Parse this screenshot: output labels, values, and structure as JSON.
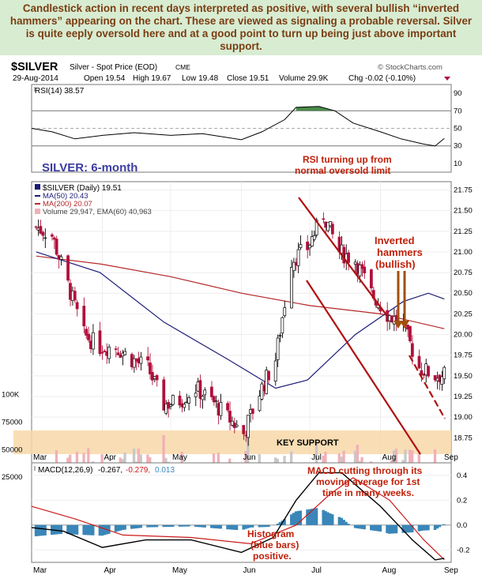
{
  "commentary": "Candlestick action in recent days interpreted as positive, with several bullish “inverted hammers” appearing on the chart. These are viewed as signaling a probable reversal. Silver is quite eeply oversold here and at a good point to turn up being just above important support.",
  "header": {
    "symbol": "$SILVER",
    "name": "Silver - Spot Price (EOD)",
    "exchange": "CME",
    "source": "© StockCharts.com",
    "date": "29-Aug-2014",
    "open": "Open 19.54",
    "high": "High 19.67",
    "low": "Low 19.48",
    "close": "Close 19.51",
    "volume": "Volume 29.9K",
    "chg": "Chg -0.02 (-0.10%)"
  },
  "rsi_panel": {
    "legend": "RSI(14) 38.57",
    "ticks": [
      "90",
      "70",
      "50",
      "30",
      "10"
    ],
    "annotation_line1": "RSI turning up from",
    "annotation_line2": "normal oversold limit"
  },
  "price_panel": {
    "title": "SILVER: 6-month",
    "legend_silver": "$SILVER (Daily) 19.51",
    "legend_ma50": "MA(50) 20.43",
    "legend_ma200": "MA(200) 20.07",
    "legend_volume": "Volume 29,947, EMA(60) 40,963",
    "price_ticks": [
      "21.75",
      "21.50",
      "21.25",
      "21.00",
      "20.75",
      "20.50",
      "20.25",
      "20.00",
      "19.75",
      "19.50",
      "19.25",
      "19.00",
      "18.75"
    ],
    "volume_ticks": [
      "100K",
      "75000",
      "50000",
      "25000"
    ],
    "key_support": "KEY SUPPORT",
    "hammer_line1": "Inverted",
    "hammer_line2": "hammers",
    "hammer_line3": "(bullish)"
  },
  "macd_panel": {
    "legend_prefix": "MACD(12,26,9)",
    "legend_macd": "-0.267,",
    "legend_signal": "-0.279,",
    "legend_hist": "0.013",
    "ticks": [
      "0.4",
      "0.2",
      "0.0",
      "-0.2"
    ],
    "annotation_line1": "MACD cutting through its",
    "annotation_line2": "moving average for 1st",
    "annotation_line3": "time in many weeks.",
    "histogram_line1": "Histogram",
    "histogram_line2": "(blue bars)",
    "histogram_line3": "positive."
  },
  "months": [
    "Mar",
    "Apr",
    "May",
    "Jun",
    "Jul",
    "Aug",
    "Sep"
  ],
  "colors": {
    "commentary_bg": "#d8ecd2",
    "commentary_text": "#7a3d12",
    "annotation": "#c0200a",
    "title_blue": "#3c3ca0",
    "up_candle": "#000000",
    "down_candle": "#b0103c",
    "ma50": "#1c1c78",
    "ma200": "#b42828",
    "volume_bar": "#f0b0b8",
    "support_zone": "#f8d8a8",
    "rsi_fill": "#4a8a4a",
    "macd_hist": "#3a86b8"
  },
  "chart_data": {
    "type": "candlestick",
    "x_range": [
      "2014-03-01",
      "2014-09-01"
    ],
    "price": {
      "ylim": [
        18.6,
        21.85
      ],
      "close_path": [
        [
          "2014-03-03",
          21.3
        ],
        [
          "2014-03-10",
          21.2
        ],
        [
          "2014-03-17",
          20.6
        ],
        [
          "2014-03-24",
          20.0
        ],
        [
          "2014-03-31",
          19.85
        ],
        [
          "2014-04-07",
          19.85
        ],
        [
          "2014-04-14",
          19.7
        ],
        [
          "2014-04-21",
          19.6
        ],
        [
          "2014-04-28",
          19.15
        ],
        [
          "2014-05-05",
          19.2
        ],
        [
          "2014-05-12",
          19.35
        ],
        [
          "2014-05-19",
          19.2
        ],
        [
          "2014-05-26",
          19.0
        ],
        [
          "2014-06-02",
          18.8
        ],
        [
          "2014-06-09",
          19.3
        ],
        [
          "2014-06-16",
          19.7
        ],
        [
          "2014-06-23",
          20.9
        ],
        [
          "2014-06-30",
          21.05
        ],
        [
          "2014-07-07",
          21.45
        ],
        [
          "2014-07-14",
          21.0
        ],
        [
          "2014-07-21",
          20.9
        ],
        [
          "2014-07-28",
          20.5
        ],
        [
          "2014-08-04",
          20.25
        ],
        [
          "2014-08-11",
          20.1
        ],
        [
          "2014-08-18",
          19.6
        ],
        [
          "2014-08-25",
          19.5
        ],
        [
          "2014-08-29",
          19.51
        ]
      ],
      "ma50": [
        [
          "2014-03-03",
          21.0
        ],
        [
          "2014-03-31",
          20.75
        ],
        [
          "2014-04-28",
          20.15
        ],
        [
          "2014-05-26",
          19.7
        ],
        [
          "2014-06-16",
          19.35
        ],
        [
          "2014-06-30",
          19.45
        ],
        [
          "2014-07-21",
          20.0
        ],
        [
          "2014-08-11",
          20.4
        ],
        [
          "2014-08-22",
          20.5
        ],
        [
          "2014-08-29",
          20.43
        ]
      ],
      "ma200": [
        [
          "2014-03-03",
          20.95
        ],
        [
          "2014-04-01",
          20.85
        ],
        [
          "2014-05-01",
          20.7
        ],
        [
          "2014-06-01",
          20.5
        ],
        [
          "2014-07-01",
          20.35
        ],
        [
          "2014-08-01",
          20.25
        ],
        [
          "2014-08-29",
          20.07
        ]
      ]
    },
    "volume": {
      "ylim": [
        0,
        150000
      ],
      "latest": 29947,
      "ema60": 40963
    },
    "rsi": {
      "ylim": [
        0,
        100
      ],
      "levels": [
        70,
        50,
        30
      ],
      "latest": 38.57,
      "path": [
        [
          "2014-03-01",
          50
        ],
        [
          "2014-03-10",
          46
        ],
        [
          "2014-03-20",
          38
        ],
        [
          "2014-04-01",
          42
        ],
        [
          "2014-04-15",
          45
        ],
        [
          "2014-05-01",
          42
        ],
        [
          "2014-05-15",
          44
        ],
        [
          "2014-06-01",
          37
        ],
        [
          "2014-06-10",
          46
        ],
        [
          "2014-06-20",
          60
        ],
        [
          "2014-06-25",
          74
        ],
        [
          "2014-07-05",
          75
        ],
        [
          "2014-07-12",
          70
        ],
        [
          "2014-07-20",
          56
        ],
        [
          "2014-08-01",
          46
        ],
        [
          "2014-08-10",
          38
        ],
        [
          "2014-08-20",
          32
        ],
        [
          "2014-08-25",
          30
        ],
        [
          "2014-08-29",
          38.57
        ]
      ]
    },
    "macd": {
      "ylim": [
        -0.3,
        0.5
      ],
      "latest_macd": -0.267,
      "latest_signal": -0.279,
      "latest_hist": 0.013,
      "macd_path": [
        [
          "2014-03-01",
          -0.02
        ],
        [
          "2014-03-15",
          -0.05
        ],
        [
          "2014-04-01",
          -0.18
        ],
        [
          "2014-04-20",
          -0.12
        ],
        [
          "2014-05-10",
          -0.12
        ],
        [
          "2014-06-01",
          -0.22
        ],
        [
          "2014-06-15",
          -0.1
        ],
        [
          "2014-06-25",
          0.2
        ],
        [
          "2014-07-05",
          0.42
        ],
        [
          "2014-07-15",
          0.42
        ],
        [
          "2014-08-01",
          0.15
        ],
        [
          "2014-08-15",
          -0.12
        ],
        [
          "2014-08-25",
          -0.28
        ],
        [
          "2014-08-29",
          -0.267
        ]
      ],
      "signal_path": [
        [
          "2014-03-01",
          0.15
        ],
        [
          "2014-03-20",
          0.05
        ],
        [
          "2014-04-10",
          -0.08
        ],
        [
          "2014-05-10",
          -0.1
        ],
        [
          "2014-06-05",
          -0.15
        ],
        [
          "2014-06-25",
          0.0
        ],
        [
          "2014-07-10",
          0.25
        ],
        [
          "2014-07-20",
          0.38
        ],
        [
          "2014-08-05",
          0.2
        ],
        [
          "2014-08-20",
          -0.12
        ],
        [
          "2014-08-29",
          -0.279
        ]
      ]
    }
  }
}
